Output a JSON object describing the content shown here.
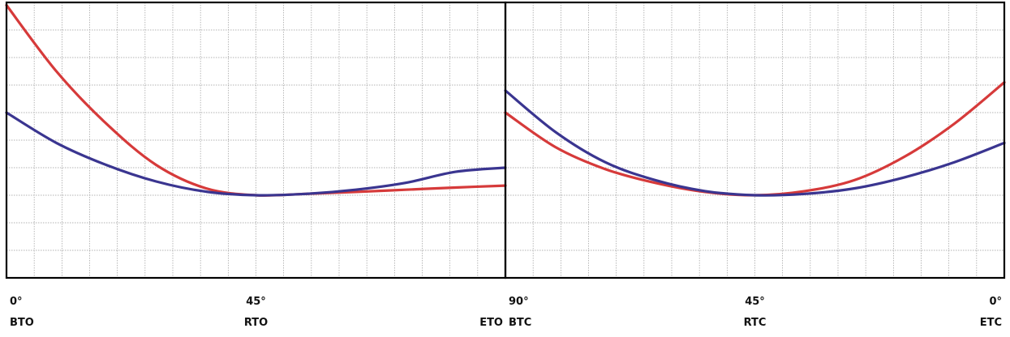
{
  "colors": {
    "background": "#ffffff",
    "grid": "#9a9a9a",
    "frame": "#000000",
    "red_curve": "#d63a3a",
    "blue_curve": "#3a3590"
  },
  "chart_data": [
    {
      "type": "line",
      "grid": true,
      "xlim": [
        0,
        90
      ],
      "ylim": [
        0,
        10
      ],
      "grid_columns": 18,
      "grid_rows": 10,
      "tick_labels": [
        {
          "x": 0,
          "angle": "0°",
          "position": "BTO"
        },
        {
          "x": 45,
          "angle": "45°",
          "position": "RTO"
        },
        {
          "x": 90,
          "angle": "",
          "position": "ETO"
        }
      ],
      "series": [
        {
          "color": "red",
          "x": [
            0,
            9,
            18,
            27,
            36,
            45,
            54,
            63,
            72,
            81,
            90
          ],
          "y": [
            9.9,
            7.5,
            5.6,
            4.1,
            3.25,
            3.0,
            3.05,
            3.12,
            3.2,
            3.28,
            3.35
          ]
        },
        {
          "color": "blue",
          "x": [
            0,
            9,
            18,
            27,
            36,
            45,
            54,
            63,
            72,
            81,
            90
          ],
          "y": [
            6.0,
            4.9,
            4.1,
            3.5,
            3.13,
            3.0,
            3.05,
            3.2,
            3.45,
            3.85,
            4.0
          ]
        }
      ]
    },
    {
      "type": "line",
      "grid": true,
      "xlim": [
        0,
        90
      ],
      "ylim": [
        0,
        10
      ],
      "grid_columns": 18,
      "grid_rows": 10,
      "tick_labels": [
        {
          "x": 0,
          "angle": "90°",
          "position": "BTC"
        },
        {
          "x": 45,
          "angle": "45°",
          "position": "RTC"
        },
        {
          "x": 90,
          "angle": "0°",
          "position": "ETC"
        }
      ],
      "series": [
        {
          "color": "red",
          "x": [
            0,
            9,
            18,
            27,
            36,
            45,
            54,
            63,
            72,
            81,
            90
          ],
          "y": [
            6.0,
            4.75,
            3.95,
            3.45,
            3.12,
            3.0,
            3.15,
            3.55,
            4.4,
            5.6,
            7.1
          ]
        },
        {
          "color": "blue",
          "x": [
            0,
            9,
            18,
            27,
            36,
            45,
            54,
            63,
            72,
            81,
            90
          ],
          "y": [
            6.8,
            5.3,
            4.2,
            3.55,
            3.15,
            3.0,
            3.05,
            3.25,
            3.65,
            4.2,
            4.9
          ]
        }
      ]
    }
  ]
}
